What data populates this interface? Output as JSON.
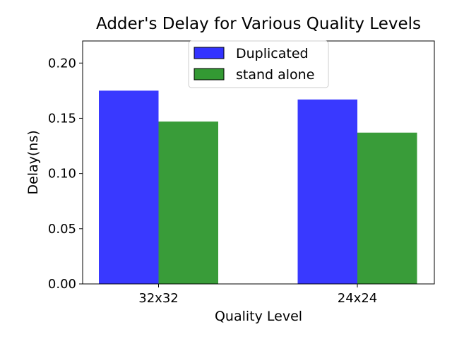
{
  "chart_data": {
    "type": "bar",
    "title": "Adder's Delay for Various Quality Levels",
    "xlabel": "Quality Level",
    "ylabel": "Delay(ns)",
    "categories": [
      "32x32",
      "24x24"
    ],
    "series": [
      {
        "name": "Duplicated",
        "values": [
          0.175,
          0.167
        ],
        "color": "#3333ff"
      },
      {
        "name": "stand alone",
        "values": [
          0.147,
          0.137
        ],
        "color": "#339933"
      }
    ],
    "ylim": [
      0,
      0.22
    ],
    "yticks": [
      "0.00",
      "0.05",
      "0.10",
      "0.15",
      "0.20"
    ],
    "grid": false,
    "legend_position": "top-center"
  }
}
